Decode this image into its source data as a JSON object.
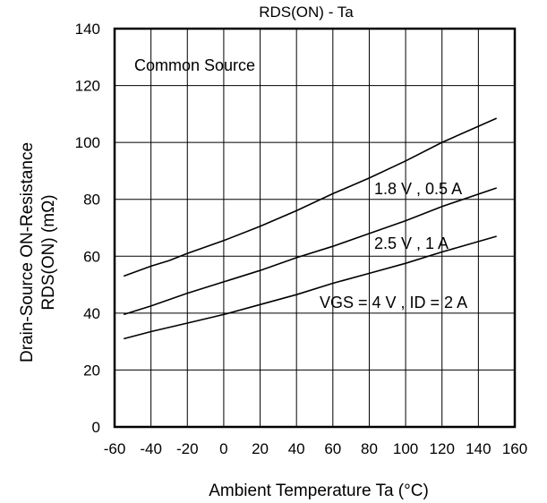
{
  "chart_data": {
    "type": "line",
    "title": "RDS(ON) - Ta",
    "xlabel": "Ambient Temperature Ta (°C)",
    "ylabel_line1": "Drain-Source ON-Resistance",
    "ylabel_line2": "RDS(ON)  (mΩ)",
    "xlim": [
      -60,
      160
    ],
    "ylim": [
      0,
      140
    ],
    "x_ticks": [
      -60,
      -40,
      -20,
      0,
      20,
      40,
      60,
      80,
      100,
      120,
      140,
      160
    ],
    "y_ticks": [
      0,
      20,
      40,
      60,
      80,
      100,
      120,
      140
    ],
    "grid": true,
    "annotations": [
      "Common Source"
    ],
    "series": [
      {
        "name": "1.8 V , 0.5 A",
        "x": [
          -55,
          -40,
          -30,
          -20,
          0,
          20,
          40,
          60,
          80,
          100,
          120,
          150
        ],
        "y": [
          53,
          56.5,
          58.5,
          61,
          65.5,
          70.5,
          76,
          82,
          87.5,
          93.5,
          100,
          108.5
        ]
      },
      {
        "name": "2.5 V , 1 A",
        "x": [
          -55,
          -40,
          -20,
          0,
          20,
          40,
          60,
          80,
          100,
          120,
          150
        ],
        "y": [
          39.5,
          42.5,
          47,
          51,
          55,
          59.5,
          63.5,
          68,
          72.5,
          77.5,
          84
        ]
      },
      {
        "name": "VGS = 4 V , ID = 2 A",
        "x": [
          -55,
          -40,
          -20,
          0,
          20,
          40,
          60,
          80,
          100,
          120,
          150
        ],
        "y": [
          31,
          33.5,
          36.5,
          39.5,
          43,
          46.5,
          50.5,
          54,
          57.5,
          61.5,
          67
        ]
      }
    ]
  }
}
